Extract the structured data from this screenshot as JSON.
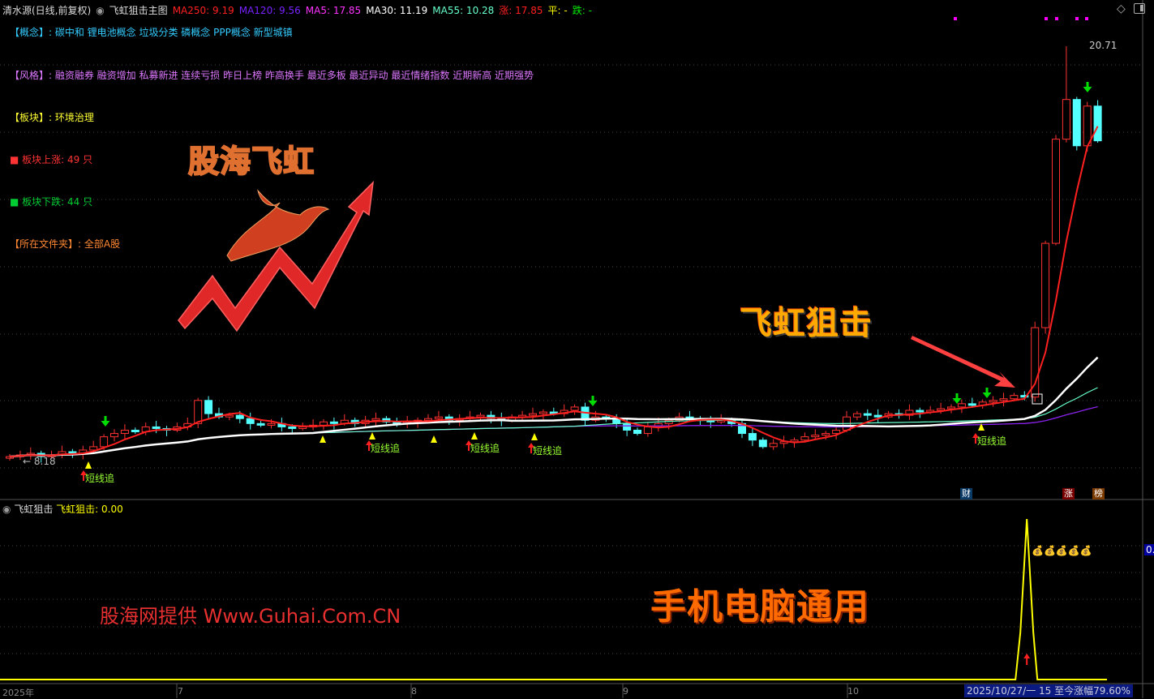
{
  "header": {
    "stock": "清水源(日线,前复权)",
    "indicator": "飞虹狙击主图",
    "ma250": "MA250: 9.19",
    "ma120": "MA120: 9.56",
    "ma5": "MA5: 17.85",
    "ma30": "MA30: 11.19",
    "ma55": "MA55: 10.28",
    "zhang": "涨: 17.85",
    "ping": "平: -",
    "die": "跌: -"
  },
  "info": {
    "concept": "【概念】: 碳中和 锂电池概念 垃圾分类 磷概念 PPP概念 新型城镇",
    "style": "【风格】: 融资融券 融资增加 私募新进 连续亏损 昨日上榜 昨高换手 最近多板 最近异动 最近情绪指数 近期新高 近期强势",
    "sector": "【板块】: 环境治理",
    "up": "■ 板块上涨: 49 只",
    "down": "■ 板块下跌: 44 只",
    "folder": "【所在文件夹】: 全部A股"
  },
  "overlay": {
    "logo_text": "股海飞虹",
    "title": "飞虹狙击",
    "universal": "手机电脑通用",
    "provider": "股海网提供 Www.Guhai.Com.CN"
  },
  "markers": {
    "short_chase": "短线追",
    "high_label": "20.71",
    "low_label": "8.18"
  },
  "badges": {
    "cai": "财",
    "zhang": "涨",
    "bang": "榜"
  },
  "sub_panel": {
    "name": "飞虹狙击",
    "value": "飞虹狙击: 0.00",
    "axis_label": "0."
  },
  "x_axis": {
    "labels": [
      "2025年",
      "7",
      "8",
      "9",
      "10"
    ]
  },
  "status": {
    "date_range": "2025/10/27/一 15 至今涨幅79.60%"
  },
  "colors": {
    "up": "#ff3232",
    "down": "#54ffff",
    "ma5": "#ff2020",
    "ma5_down": "#00e000",
    "ma30": "#ffffff",
    "ma55": "#66ffcc",
    "ma120": "#7722ff",
    "ma250": "#ff2020",
    "signal": "#ffff00"
  },
  "icons": {
    "collapse": "chevron-circle-icon",
    "diamond": "diamond-icon",
    "panel": "panel-toggle-icon"
  },
  "chart_data": {
    "type": "candlestick",
    "closes": [
      8.3,
      8.35,
      8.4,
      8.3,
      8.35,
      8.45,
      8.4,
      8.5,
      8.6,
      8.9,
      9.0,
      9.1,
      9.05,
      9.2,
      9.15,
      9.1,
      9.2,
      9.3,
      10.0,
      9.6,
      9.5,
      9.55,
      9.45,
      9.3,
      9.25,
      9.3,
      9.2,
      9.15,
      9.2,
      9.25,
      9.35,
      9.3,
      9.4,
      9.3,
      9.4,
      9.45,
      9.35,
      9.3,
      9.35,
      9.4,
      9.45,
      9.5,
      9.4,
      9.45,
      9.5,
      9.55,
      9.45,
      9.4,
      9.5,
      9.55,
      9.6,
      9.65,
      9.6,
      9.7,
      9.8,
      9.4,
      9.5,
      9.45,
      9.3,
      9.1,
      9.0,
      9.2,
      9.3,
      9.4,
      9.5,
      9.45,
      9.4,
      9.35,
      9.4,
      9.3,
      9.0,
      8.8,
      8.6,
      8.7,
      8.75,
      8.8,
      8.9,
      8.95,
      9.0,
      9.1,
      9.5,
      9.6,
      9.55,
      9.5,
      9.6,
      9.55,
      9.7,
      9.65,
      9.7,
      9.75,
      9.8,
      9.9,
      9.85,
      9.95,
      10.0,
      10.05,
      10.15,
      10.1,
      12.2,
      14.75,
      17.9,
      19.1,
      17.7,
      18.9,
      17.85
    ],
    "high": 20.71,
    "low": 8.18,
    "sub_signal_peak_bar": 98
  }
}
